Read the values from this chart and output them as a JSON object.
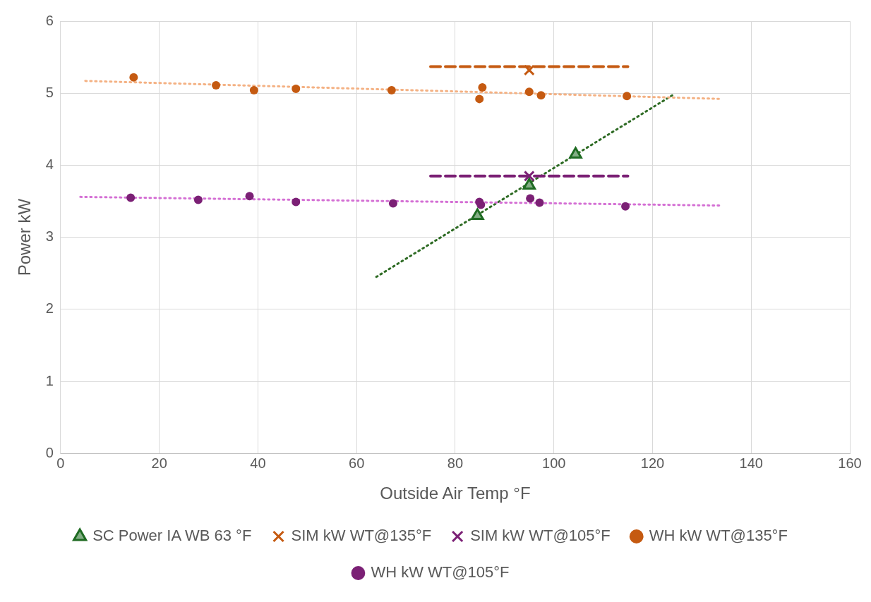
{
  "chart_data": {
    "type": "scatter",
    "xlabel": "Outside Air Temp °F",
    "ylabel": "Power kW",
    "xlim": [
      0,
      160
    ],
    "xticks": [
      0,
      20,
      40,
      60,
      80,
      100,
      120,
      140,
      160
    ],
    "ylim": [
      0,
      6
    ],
    "yticks": [
      0,
      1,
      2,
      3,
      4,
      5,
      6
    ],
    "grid": true,
    "legend": "bottom",
    "series": [
      {
        "name": "SC Power IA WB 63 °F",
        "marker": "triangle",
        "color": "#1e6b22",
        "x": [
          84.5,
          95,
          104.4
        ],
        "values": [
          3.3,
          3.72,
          4.15
        ]
      },
      {
        "name": "SIM kW WT@135°F",
        "marker": "cross",
        "color": "#c55a11",
        "x": [
          95
        ],
        "values": [
          5.32
        ]
      },
      {
        "name": "SIM kW WT@105°F",
        "marker": "cross",
        "color": "#7b2075",
        "x": [
          95
        ],
        "values": [
          3.85
        ]
      },
      {
        "name": "WH kW WT@135°F",
        "marker": "circle",
        "color": "#c55a11",
        "x": [
          14.8,
          31.5,
          39.2,
          47.7,
          67.1,
          85.5,
          84.9,
          95,
          97.4,
          114.8
        ],
        "values": [
          5.22,
          5.11,
          5.04,
          5.06,
          5.04,
          5.08,
          4.92,
          5.02,
          4.97,
          4.96
        ]
      },
      {
        "name": "WH kW WT@105°F",
        "marker": "circle",
        "color": "#7b2075",
        "x": [
          14.2,
          27.9,
          38.3,
          47.7,
          67.4,
          84.9,
          85.2,
          95.2,
          97.1,
          114.5
        ],
        "values": [
          3.55,
          3.52,
          3.57,
          3.49,
          3.47,
          3.49,
          3.45,
          3.54,
          3.48,
          3.43
        ]
      },
      {
        "type": "line",
        "line_style": "dashed",
        "marker": "none",
        "color": "#c55a11",
        "x": [
          75,
          115
        ],
        "values": [
          5.37,
          5.37
        ]
      },
      {
        "type": "line",
        "line_style": "dashed",
        "marker": "none",
        "color": "#7b2075",
        "x": [
          75,
          115
        ],
        "values": [
          3.85,
          3.85
        ]
      },
      {
        "type": "line",
        "line_style": "dotted",
        "marker": "none",
        "color": "#f4b183",
        "x": [
          5,
          134
        ],
        "values": [
          5.17,
          4.92
        ]
      },
      {
        "type": "line",
        "line_style": "dotted",
        "marker": "none",
        "color": "#d46fd4",
        "x": [
          4,
          134
        ],
        "values": [
          3.56,
          3.44
        ]
      },
      {
        "type": "line",
        "line_style": "dotted",
        "marker": "none",
        "color": "#2e6b24",
        "x": [
          64,
          124
        ],
        "values": [
          2.45,
          4.97
        ]
      }
    ]
  }
}
